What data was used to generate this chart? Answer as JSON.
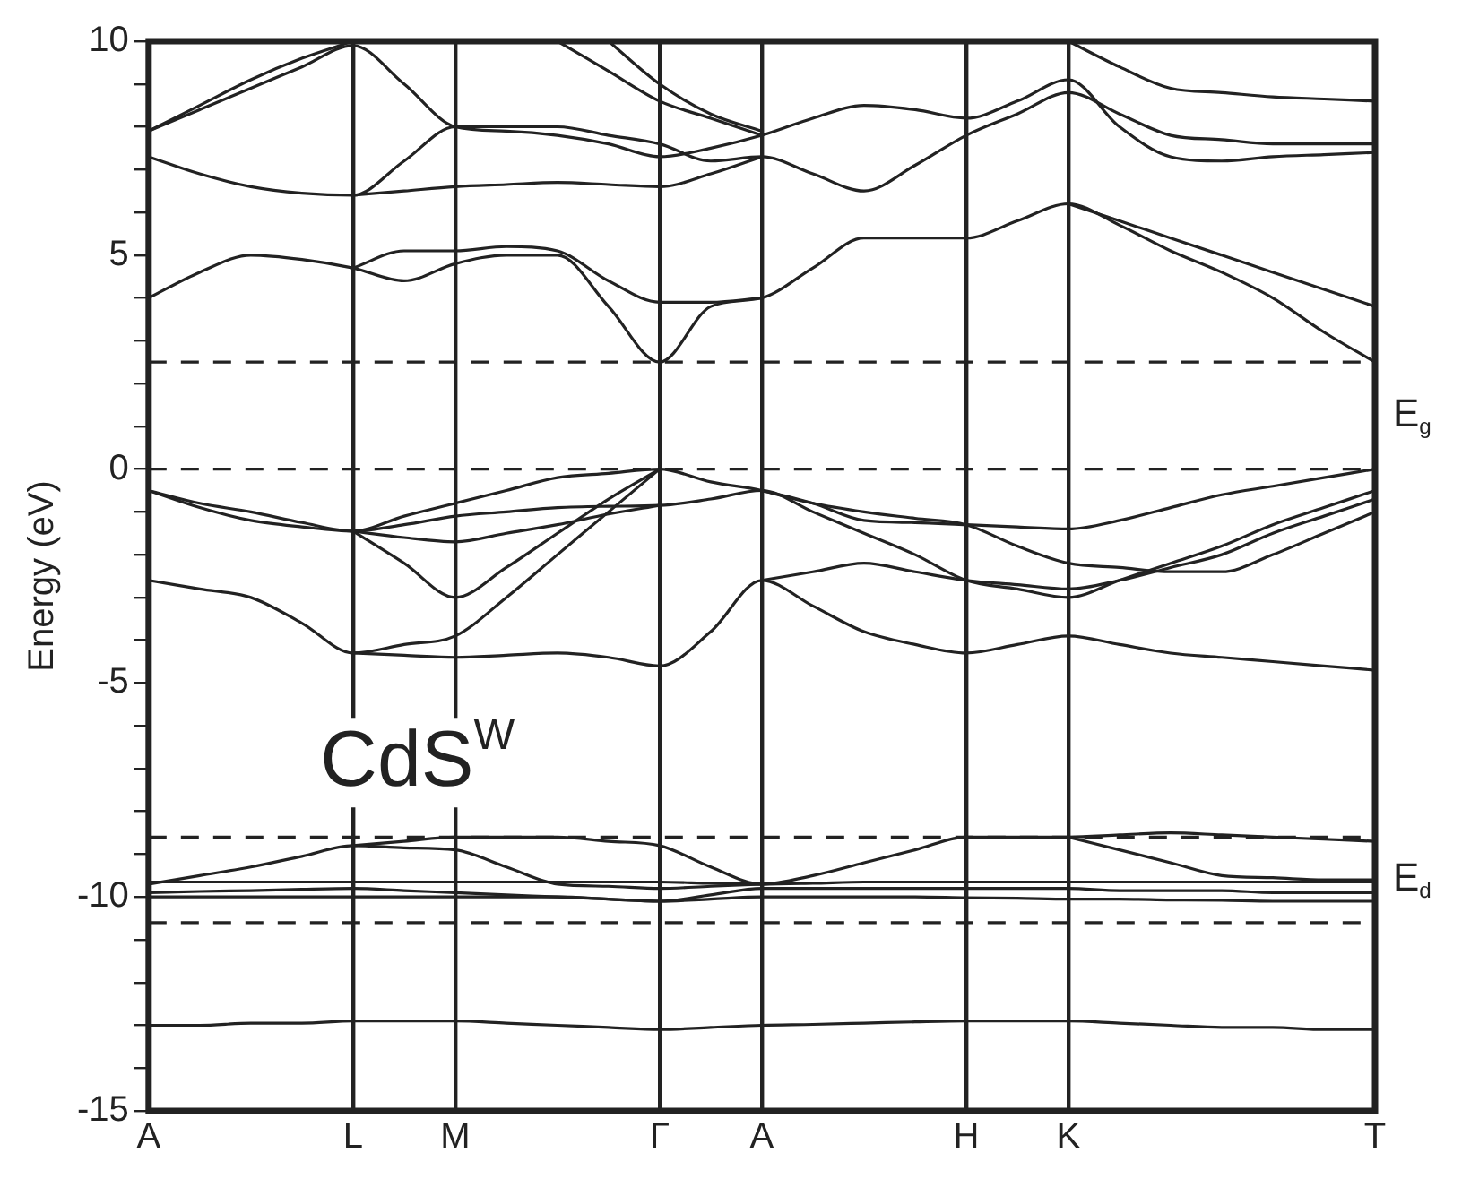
{
  "chart_data": {
    "type": "line",
    "ylabel": "Energy (eV)",
    "annotations": [
      "CdS$^{W}$",
      "E$_{g}$",
      "E$_{d}$"
    ],
    "categories": [
      "A",
      null,
      null,
      null,
      "L",
      null,
      "M",
      null,
      null,
      null,
      "Γ",
      null,
      "A",
      null,
      null,
      null,
      "H",
      null,
      "K",
      null,
      null,
      null,
      null,
      null,
      "T"
    ],
    "ylim": [
      -15,
      10
    ],
    "yticks": [
      -15,
      {
        "value": -14,
        "label": null
      },
      {
        "value": -13,
        "label": null
      },
      {
        "value": -12,
        "label": null
      },
      {
        "value": -11,
        "label": null
      },
      -10,
      {
        "value": -9,
        "label": null
      },
      {
        "value": -8,
        "label": null
      },
      {
        "value": -7,
        "label": null
      },
      {
        "value": -6,
        "label": null
      },
      -5,
      {
        "value": -4,
        "label": null
      },
      {
        "value": -3,
        "label": null
      },
      {
        "value": -2,
        "label": null
      },
      {
        "value": -1,
        "label": null
      },
      0,
      {
        "value": 1,
        "label": null
      },
      {
        "value": 2,
        "label": null
      },
      {
        "value": 3,
        "label": null
      },
      {
        "value": 4,
        "label": null
      },
      5,
      {
        "value": 6,
        "label": null
      },
      {
        "value": 7,
        "label": null
      },
      {
        "value": 8,
        "label": null
      },
      {
        "value": 9,
        "label": null
      },
      10
    ],
    "grid": "x",
    "marker": "none",
    "line_style": "solid",
    "ref_lines": [
      {
        "axis": "y",
        "value": 2.5,
        "line_style": "dashed",
        "color": "#222222"
      },
      {
        "axis": "y",
        "value": 0,
        "line_style": "dashed",
        "color": "#222222"
      },
      {
        "axis": "y",
        "value": -8.6,
        "line_style": "dashed",
        "color": "#222222"
      },
      {
        "axis": "y",
        "value": -10.6,
        "line_style": "dashed",
        "color": "#222222"
      }
    ],
    "series": [
      {
        "color": "#222222",
        "values": [
          4.0,
          4.6,
          5.0,
          4.9,
          4.7,
          4.4,
          4.8,
          5.0,
          5.0,
          3.8,
          2.5,
          3.8,
          4.0,
          4.7,
          5.4,
          5.4,
          5.4,
          5.8,
          6.2,
          5.7,
          5.1,
          4.6,
          4.0,
          3.2,
          2.5
        ]
      },
      {
        "color": "#222222",
        "values": [
          null,
          null,
          null,
          null,
          4.7,
          5.1,
          5.1,
          5.2,
          5.1,
          4.4,
          3.9,
          3.9,
          4.0,
          null,
          null,
          null,
          null,
          null,
          null,
          null,
          null,
          null,
          null,
          null,
          null
        ]
      },
      {
        "color": "#222222",
        "values": [
          null,
          null,
          null,
          null,
          null,
          null,
          null,
          null,
          null,
          null,
          null,
          null,
          null,
          null,
          null,
          null,
          null,
          null,
          6.2,
          5.8,
          5.4,
          5.0,
          4.6,
          4.2,
          3.8
        ]
      },
      {
        "color": "#222222",
        "values": [
          7.9,
          8.4,
          8.9,
          9.4,
          9.9,
          9.0,
          8.0,
          7.9,
          7.8,
          7.6,
          7.3,
          7.5,
          7.8,
          8.2,
          8.5,
          8.4,
          8.2,
          8.6,
          9.1,
          8.0,
          7.3,
          7.2,
          7.3,
          7.35,
          7.4
        ]
      },
      {
        "color": "#222222",
        "values": [
          7.9,
          8.5,
          9.1,
          9.6,
          10,
          null,
          null,
          null,
          null,
          null,
          null,
          null,
          null,
          null,
          null,
          null,
          null,
          null,
          null,
          null,
          null,
          null,
          null,
          null,
          null
        ]
      },
      {
        "color": "#222222",
        "values": [
          7.3,
          6.9,
          6.6,
          6.45,
          6.4,
          7.2,
          8.0,
          8.0,
          8.0,
          7.8,
          7.6,
          7.2,
          7.3,
          6.9,
          6.5,
          7.1,
          7.8,
          8.3,
          8.8,
          8.3,
          7.8,
          7.7,
          7.6,
          7.6,
          7.6
        ]
      },
      {
        "color": "#222222",
        "values": [
          null,
          null,
          null,
          null,
          6.4,
          6.5,
          6.6,
          6.65,
          6.7,
          6.65,
          6.6,
          6.9,
          7.3,
          null,
          null,
          null,
          null,
          null,
          null,
          null,
          null,
          null,
          null,
          null,
          null
        ]
      },
      {
        "color": "#222222",
        "values": [
          null,
          null,
          null,
          null,
          null,
          null,
          null,
          null,
          10,
          9.3,
          8.6,
          8.2,
          7.8,
          null,
          null,
          null,
          null,
          null,
          null,
          null,
          null,
          null,
          null,
          null,
          null
        ]
      },
      {
        "color": "#222222",
        "values": [
          null,
          null,
          null,
          null,
          null,
          null,
          null,
          null,
          null,
          10,
          9.0,
          8.3,
          7.9,
          null,
          null,
          null,
          null,
          null,
          null,
          null,
          null,
          null,
          null,
          null,
          null
        ]
      },
      {
        "color": "#222222",
        "values": [
          null,
          null,
          null,
          null,
          null,
          null,
          null,
          null,
          null,
          null,
          null,
          null,
          null,
          null,
          null,
          null,
          null,
          null,
          10,
          9.4,
          8.9,
          8.8,
          8.7,
          8.65,
          8.6
        ]
      },
      {
        "color": "#222222",
        "values": [
          -0.5,
          -0.8,
          -1.0,
          -1.25,
          -1.45,
          -1.1,
          -0.8,
          -0.5,
          -0.2,
          -0.1,
          0,
          -0.3,
          -0.5,
          -0.8,
          -1.2,
          -1.25,
          -1.3,
          -1.35,
          -1.4,
          -1.2,
          -0.9,
          -0.6,
          -0.4,
          -0.2,
          0
        ]
      },
      {
        "color": "#222222",
        "values": [
          -0.5,
          -0.9,
          -1.2,
          -1.35,
          -1.45,
          -1.3,
          -1.1,
          -1.0,
          -0.9,
          -0.87,
          -0.85,
          -0.7,
          -0.5,
          -1.0,
          -1.5,
          -2.0,
          -2.6,
          -2.8,
          -3.0,
          -2.6,
          -2.2,
          -1.8,
          -1.3,
          -0.9,
          -0.5
        ]
      },
      {
        "color": "#222222",
        "values": [
          null,
          null,
          null,
          null,
          -1.45,
          -1.6,
          -1.7,
          -1.5,
          -1.3,
          -1.05,
          -0.85,
          null,
          null,
          null,
          null,
          null,
          null,
          null,
          null,
          null,
          null,
          null,
          null,
          null,
          null
        ]
      },
      {
        "color": "#222222",
        "values": [
          null,
          null,
          null,
          null,
          -1.45,
          -2.2,
          -3.0,
          -2.3,
          -1.5,
          -0.7,
          0,
          null,
          null,
          null,
          null,
          null,
          null,
          null,
          null,
          null,
          null,
          null,
          null,
          null,
          null
        ]
      },
      {
        "color": "#222222",
        "values": [
          -2.6,
          -2.8,
          -3.0,
          -3.6,
          -4.3,
          -4.1,
          -3.9,
          -3.0,
          -2.0,
          -1.0,
          0,
          null,
          null,
          null,
          null,
          null,
          null,
          null,
          null,
          null,
          null,
          null,
          null,
          null,
          null
        ]
      },
      {
        "color": "#222222",
        "values": [
          null,
          null,
          null,
          null,
          -4.3,
          -4.35,
          -4.4,
          -4.35,
          -4.3,
          -4.4,
          -4.6,
          -3.8,
          -2.6,
          -3.2,
          -3.8,
          -4.1,
          -4.3,
          -4.1,
          -3.9,
          -4.1,
          -4.3,
          -4.4,
          -4.5,
          -4.6,
          -4.7
        ]
      },
      {
        "color": "#222222",
        "values": [
          null,
          null,
          null,
          null,
          null,
          null,
          null,
          null,
          null,
          null,
          null,
          null,
          -2.6,
          -2.4,
          -2.2,
          -2.4,
          -2.6,
          -2.7,
          -2.8,
          -2.6,
          -2.3,
          -2.0,
          -1.5,
          -1.1,
          -0.7
        ]
      },
      {
        "color": "#222222",
        "values": [
          null,
          null,
          null,
          null,
          null,
          null,
          null,
          null,
          null,
          null,
          null,
          null,
          -0.5,
          -0.8,
          -1.0,
          -1.15,
          -1.3,
          -1.8,
          -2.2,
          -2.3,
          -2.4,
          -2.4,
          -2.0,
          -1.5,
          -1.0
        ]
      },
      {
        "color": "#222222",
        "values": [
          -9.7,
          -9.5,
          -9.3,
          -9.05,
          -8.8,
          -8.85,
          -8.9,
          -9.3,
          -9.7,
          -9.75,
          -9.8,
          -9.75,
          -9.7,
          null,
          null,
          null,
          null,
          null,
          null,
          null,
          null,
          null,
          null,
          null,
          null
        ]
      },
      {
        "color": "#222222",
        "values": [
          null,
          null,
          null,
          null,
          -8.8,
          -8.7,
          -8.6,
          -8.6,
          -8.6,
          -8.7,
          -8.8,
          -9.3,
          -9.7,
          -9.5,
          -9.2,
          -8.9,
          -8.6,
          -8.6,
          -8.6,
          -8.55,
          -8.5,
          -8.55,
          -8.6,
          -8.65,
          -8.7
        ]
      },
      {
        "color": "#222222",
        "values": [
          null,
          null,
          null,
          null,
          null,
          null,
          null,
          null,
          null,
          null,
          null,
          null,
          null,
          null,
          null,
          null,
          null,
          null,
          -8.6,
          -8.9,
          -9.2,
          -9.5,
          -9.55,
          -9.6,
          -9.6
        ]
      },
      {
        "color": "#222222",
        "values": [
          -9.65,
          -9.65,
          -9.65,
          -9.65,
          -9.65,
          -9.65,
          -9.65,
          -9.65,
          -9.65,
          -9.65,
          -9.65,
          -9.68,
          -9.7,
          -9.68,
          -9.65,
          -9.65,
          -9.65,
          -9.65,
          -9.65,
          -9.65,
          -9.65,
          -9.65,
          -9.65,
          -9.65,
          -9.65
        ]
      },
      {
        "color": "#222222",
        "values": [
          -9.9,
          -9.87,
          -9.85,
          -9.82,
          -9.8,
          -9.85,
          -9.9,
          -9.95,
          -10.0,
          -10.05,
          -10.1,
          -9.95,
          -9.8,
          -9.8,
          -9.8,
          -9.8,
          -9.8,
          -9.8,
          -9.8,
          -9.85,
          -9.85,
          -9.85,
          -9.9,
          -9.9,
          -9.9
        ]
      },
      {
        "color": "#222222",
        "values": [
          -10.0,
          -10.0,
          -10.0,
          -10.0,
          -10.0,
          -10.0,
          -10.0,
          -10.0,
          -10.0,
          -10.05,
          -10.1,
          -10.05,
          -10.0,
          -10.0,
          -10.0,
          -10.0,
          -10.02,
          -10.03,
          -10.05,
          -10.05,
          -10.07,
          -10.08,
          -10.1,
          -10.1,
          -10.1
        ]
      },
      {
        "color": "#222222",
        "values": [
          -13.0,
          -13.0,
          -12.95,
          -12.95,
          -12.9,
          -12.9,
          -12.9,
          -12.95,
          -13.0,
          -13.05,
          -13.1,
          -13.05,
          -13.0,
          -12.98,
          -12.95,
          -12.92,
          -12.9,
          -12.9,
          -12.9,
          -12.95,
          -13.0,
          -13.05,
          -13.05,
          -13.1,
          -13.1
        ]
      }
    ]
  }
}
